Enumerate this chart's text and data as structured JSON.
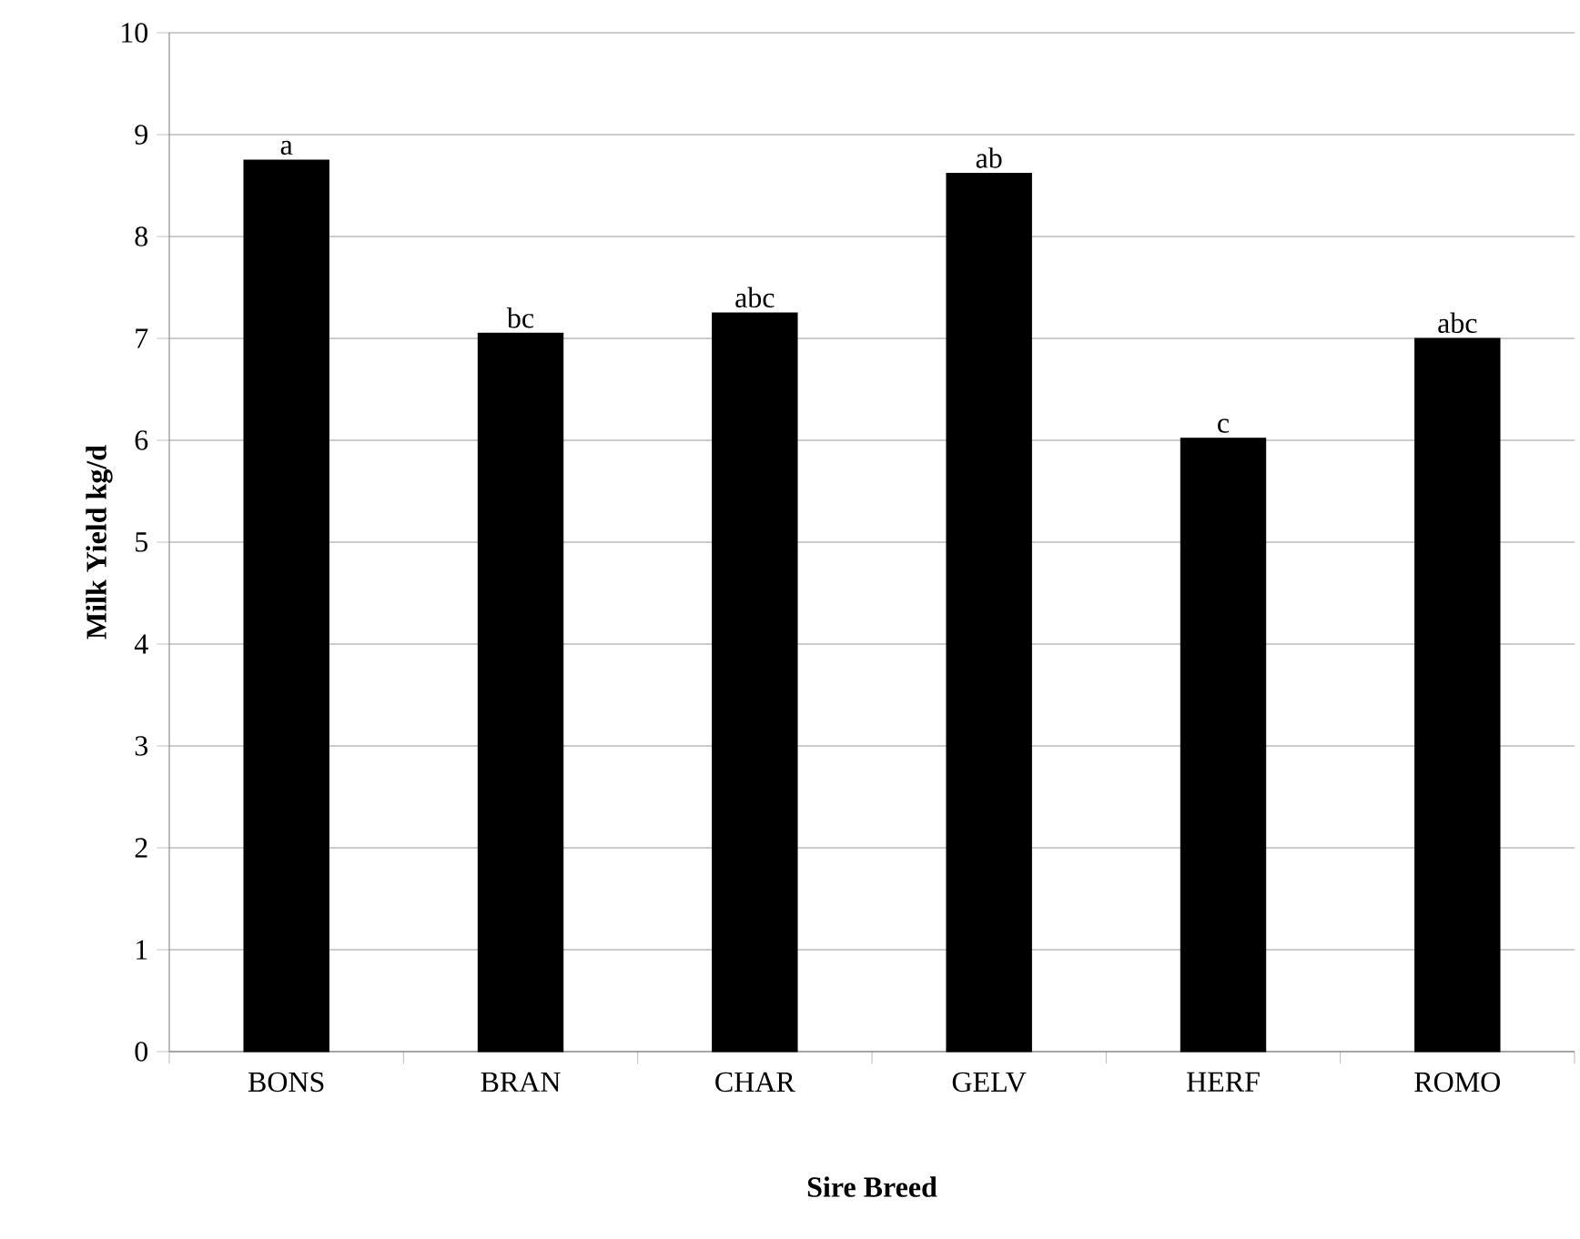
{
  "chart_data": {
    "type": "bar",
    "xlabel": "Sire Breed",
    "ylabel": "Milk Yield kg/d",
    "categories": [
      "BONS",
      "BRAN",
      "CHAR",
      "GELV",
      "HERF",
      "ROMO"
    ],
    "values": [
      8.75,
      7.05,
      7.25,
      8.62,
      6.02,
      7.0
    ],
    "color": "#000000",
    "ylim": [
      0,
      10
    ],
    "yticks": [
      0,
      1,
      2,
      3,
      4,
      5,
      6,
      7,
      8,
      9,
      10
    ],
    "grid": "y",
    "annotations": [
      {
        "text": "a",
        "x": "BONS",
        "y": 8.75
      },
      {
        "text": "bc",
        "x": "BRAN",
        "y": 7.05
      },
      {
        "text": "abc",
        "x": "CHAR",
        "y": 7.25
      },
      {
        "text": "ab",
        "x": "GELV",
        "y": 8.62
      },
      {
        "text": "c",
        "x": "HERF",
        "y": 6.02
      },
      {
        "text": "abc",
        "x": "ROMO",
        "y": 7.0
      }
    ]
  }
}
